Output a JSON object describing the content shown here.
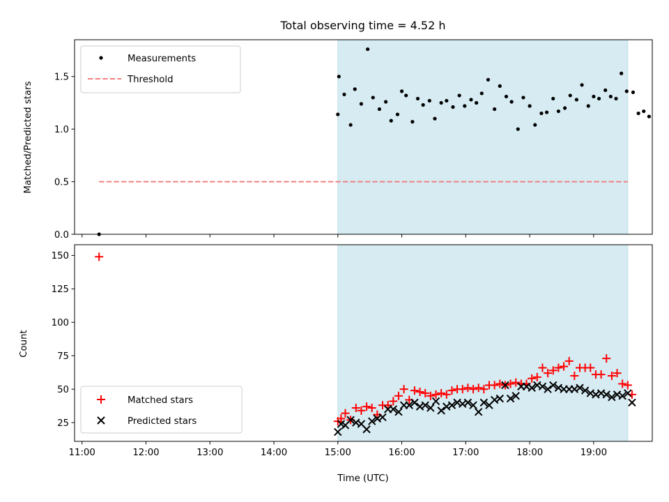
{
  "chart_data": [
    {
      "type": "scatter",
      "title": "Total observing time = 4.52 h",
      "xlabel": "",
      "ylabel": "Matched/Predicted stars",
      "xlim": [
        "10:53",
        "19:55"
      ],
      "ylim": [
        0,
        1.85
      ],
      "yticks": [
        "0.0",
        "0.5",
        "1.0",
        "1.5"
      ],
      "observing_window": {
        "start": "15:00",
        "end": "19:32",
        "color": "#add8e6"
      },
      "grid": false,
      "legend_position": "upper left",
      "series": [
        {
          "name": "Measurements",
          "marker": "dot",
          "color": "#000000",
          "points": [
            [
              "11:16",
              0.0
            ],
            [
              "15:00",
              1.14
            ],
            [
              "15:01",
              1.5
            ],
            [
              "15:06",
              1.33
            ],
            [
              "15:12",
              1.04
            ],
            [
              "15:16",
              1.38
            ],
            [
              "15:22",
              1.24
            ],
            [
              "15:28",
              1.76
            ],
            [
              "15:33",
              1.3
            ],
            [
              "15:39",
              1.19
            ],
            [
              "15:45",
              1.26
            ],
            [
              "15:50",
              1.08
            ],
            [
              "15:56",
              1.14
            ],
            [
              "16:00",
              1.36
            ],
            [
              "16:04",
              1.32
            ],
            [
              "16:10",
              1.07
            ],
            [
              "16:15",
              1.29
            ],
            [
              "16:20",
              1.23
            ],
            [
              "16:26",
              1.27
            ],
            [
              "16:31",
              1.1
            ],
            [
              "16:37",
              1.25
            ],
            [
              "16:42",
              1.27
            ],
            [
              "16:48",
              1.21
            ],
            [
              "16:54",
              1.32
            ],
            [
              "16:59",
              1.22
            ],
            [
              "17:05",
              1.28
            ],
            [
              "17:10",
              1.25
            ],
            [
              "17:15",
              1.34
            ],
            [
              "17:21",
              1.47
            ],
            [
              "17:27",
              1.19
            ],
            [
              "17:32",
              1.41
            ],
            [
              "17:38",
              1.31
            ],
            [
              "17:43",
              1.26
            ],
            [
              "17:49",
              1.0
            ],
            [
              "17:54",
              1.3
            ],
            [
              "18:00",
              1.22
            ],
            [
              "18:05",
              1.04
            ],
            [
              "18:11",
              1.15
            ],
            [
              "18:16",
              1.16
            ],
            [
              "18:22",
              1.29
            ],
            [
              "18:27",
              1.17
            ],
            [
              "18:33",
              1.2
            ],
            [
              "18:38",
              1.32
            ],
            [
              "18:44",
              1.28
            ],
            [
              "18:49",
              1.42
            ],
            [
              "18:55",
              1.22
            ],
            [
              "19:00",
              1.31
            ],
            [
              "19:05",
              1.29
            ],
            [
              "19:11",
              1.37
            ],
            [
              "19:16",
              1.31
            ],
            [
              "19:21",
              1.29
            ],
            [
              "19:26",
              1.53
            ],
            [
              "19:31",
              1.36
            ],
            [
              "19:37",
              1.35
            ],
            [
              "19:42",
              1.15
            ],
            [
              "19:47",
              1.17
            ],
            [
              "19:52",
              1.12
            ]
          ]
        },
        {
          "name": "Threshold",
          "style": "dashed",
          "color": "#f08080",
          "points": [
            [
              "11:16",
              0.5
            ],
            [
              "19:32",
              0.5
            ]
          ]
        }
      ]
    },
    {
      "type": "scatter",
      "xlabel": "Time (UTC)",
      "ylabel": "Count",
      "xlim": [
        "10:53",
        "19:55"
      ],
      "xticks": [
        "11:00",
        "12:00",
        "13:00",
        "14:00",
        "15:00",
        "16:00",
        "17:00",
        "18:00",
        "19:00"
      ],
      "ylim": [
        11,
        158
      ],
      "yticks": [
        "25",
        "50",
        "75",
        "100",
        "125",
        "150"
      ],
      "observing_window": {
        "start": "15:00",
        "end": "19:32",
        "color": "#add8e6"
      },
      "grid": false,
      "legend_position": "lower left",
      "series": [
        {
          "name": "Matched stars",
          "marker": "plus",
          "color": "#ff0000",
          "points": [
            [
              "11:16",
              149
            ],
            [
              "15:00",
              26
            ],
            [
              "15:03",
              28
            ],
            [
              "15:07",
              32
            ],
            [
              "15:12",
              27
            ],
            [
              "15:17",
              36
            ],
            [
              "15:22",
              34
            ],
            [
              "15:27",
              37
            ],
            [
              "15:32",
              36
            ],
            [
              "15:37",
              31
            ],
            [
              "15:42",
              38
            ],
            [
              "15:47",
              38
            ],
            [
              "15:52",
              41
            ],
            [
              "15:57",
              45
            ],
            [
              "16:02",
              50
            ],
            [
              "16:07",
              42
            ],
            [
              "16:12",
              49
            ],
            [
              "16:17",
              48
            ],
            [
              "16:22",
              47
            ],
            [
              "16:27",
              45
            ],
            [
              "16:32",
              46
            ],
            [
              "16:37",
              47
            ],
            [
              "16:42",
              46
            ],
            [
              "16:47",
              49
            ],
            [
              "16:52",
              50
            ],
            [
              "16:57",
              50
            ],
            [
              "17:02",
              51
            ],
            [
              "17:07",
              50
            ],
            [
              "17:12",
              51
            ],
            [
              "17:17",
              50
            ],
            [
              "17:22",
              53
            ],
            [
              "17:27",
              53
            ],
            [
              "17:32",
              54
            ],
            [
              "17:37",
              53
            ],
            [
              "17:42",
              54
            ],
            [
              "17:47",
              55
            ],
            [
              "17:52",
              54
            ],
            [
              "17:57",
              54
            ],
            [
              "18:02",
              58
            ],
            [
              "18:07",
              59
            ],
            [
              "18:12",
              66
            ],
            [
              "18:17",
              62
            ],
            [
              "18:22",
              64
            ],
            [
              "18:27",
              66
            ],
            [
              "18:32",
              67
            ],
            [
              "18:37",
              71
            ],
            [
              "18:42",
              60
            ],
            [
              "18:47",
              66
            ],
            [
              "18:52",
              66
            ],
            [
              "18:57",
              66
            ],
            [
              "19:02",
              61
            ],
            [
              "19:07",
              61
            ],
            [
              "19:12",
              73
            ],
            [
              "19:17",
              60
            ],
            [
              "19:22",
              62
            ],
            [
              "19:27",
              54
            ],
            [
              "19:32",
              53
            ],
            [
              "19:36",
              46
            ]
          ]
        },
        {
          "name": "Predicted stars",
          "marker": "x",
          "color": "#000000",
          "points": [
            [
              "15:00",
              18
            ],
            [
              "15:03",
              24
            ],
            [
              "15:07",
              23
            ],
            [
              "15:12",
              27
            ],
            [
              "15:17",
              25
            ],
            [
              "15:22",
              24
            ],
            [
              "15:27",
              20
            ],
            [
              "15:32",
              26
            ],
            [
              "15:37",
              28
            ],
            [
              "15:42",
              29
            ],
            [
              "15:47",
              35
            ],
            [
              "15:52",
              35
            ],
            [
              "15:57",
              33
            ],
            [
              "16:02",
              38
            ],
            [
              "16:07",
              38
            ],
            [
              "16:12",
              40
            ],
            [
              "16:17",
              37
            ],
            [
              "16:22",
              38
            ],
            [
              "16:27",
              36
            ],
            [
              "16:32",
              41
            ],
            [
              "16:37",
              34
            ],
            [
              "16:42",
              37
            ],
            [
              "16:47",
              38
            ],
            [
              "16:52",
              40
            ],
            [
              "16:57",
              39
            ],
            [
              "17:02",
              40
            ],
            [
              "17:07",
              38
            ],
            [
              "17:12",
              33
            ],
            [
              "17:17",
              40
            ],
            [
              "17:22",
              38
            ],
            [
              "17:27",
              42
            ],
            [
              "17:32",
              43
            ],
            [
              "17:37",
              53
            ],
            [
              "17:42",
              43
            ],
            [
              "17:47",
              45
            ],
            [
              "17:52",
              52
            ],
            [
              "17:57",
              52
            ],
            [
              "18:02",
              51
            ],
            [
              "18:07",
              53
            ],
            [
              "18:12",
              52
            ],
            [
              "18:17",
              50
            ],
            [
              "18:22",
              53
            ],
            [
              "18:27",
              51
            ],
            [
              "18:32",
              50
            ],
            [
              "18:37",
              50
            ],
            [
              "18:42",
              50
            ],
            [
              "18:47",
              51
            ],
            [
              "18:52",
              49
            ],
            [
              "18:57",
              47
            ],
            [
              "19:02",
              46
            ],
            [
              "19:07",
              47
            ],
            [
              "19:12",
              46
            ],
            [
              "19:17",
              44
            ],
            [
              "19:22",
              46
            ],
            [
              "19:27",
              45
            ],
            [
              "19:32",
              47
            ],
            [
              "19:36",
              40
            ]
          ]
        }
      ]
    }
  ]
}
